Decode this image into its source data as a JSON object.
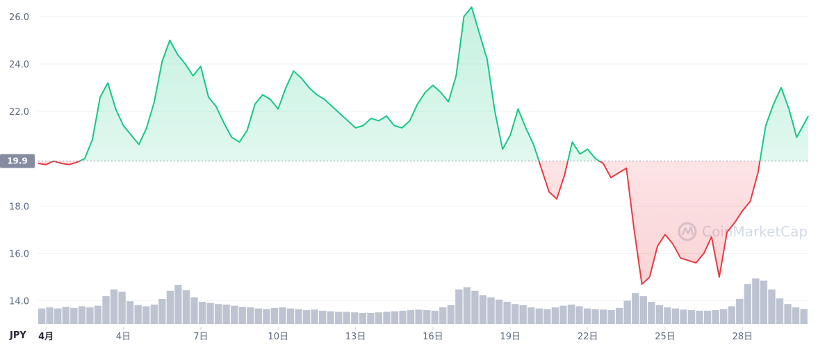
{
  "chart_data": {
    "type": "area",
    "currency_label": "JPY",
    "reference_value": 19.9,
    "reference_label": "19.9",
    "y_ticks": [
      {
        "value": 14,
        "label": "14.0"
      },
      {
        "value": 16,
        "label": "16.0"
      },
      {
        "value": 18,
        "label": "18.0"
      },
      {
        "value": 22,
        "label": "22.0"
      },
      {
        "value": 24,
        "label": "24.0"
      },
      {
        "value": 26,
        "label": "26.0"
      }
    ],
    "ylim": [
      12.9,
      26.7
    ],
    "xlim": [
      0.0,
      29.85
    ],
    "x_ticks": [
      {
        "day": 0.3,
        "label": "4月",
        "bold": true
      },
      {
        "day": 3.3,
        "label": "4日"
      },
      {
        "day": 6.3,
        "label": "7日"
      },
      {
        "day": 9.3,
        "label": "10日"
      },
      {
        "day": 12.3,
        "label": "13日"
      },
      {
        "day": 15.3,
        "label": "16日"
      },
      {
        "day": 18.3,
        "label": "19日"
      },
      {
        "day": 21.3,
        "label": "22日"
      },
      {
        "day": 24.3,
        "label": "25日"
      },
      {
        "day": 27.3,
        "label": "28日"
      }
    ],
    "price_points": [
      [
        0.0,
        19.8
      ],
      [
        0.3,
        19.75
      ],
      [
        0.6,
        19.9
      ],
      [
        0.9,
        19.8
      ],
      [
        1.2,
        19.75
      ],
      [
        1.5,
        19.85
      ],
      [
        1.8,
        20.0
      ],
      [
        2.1,
        20.8
      ],
      [
        2.4,
        22.6
      ],
      [
        2.7,
        23.2
      ],
      [
        3.0,
        22.1
      ],
      [
        3.3,
        21.4
      ],
      [
        3.6,
        21.0
      ],
      [
        3.9,
        20.6
      ],
      [
        4.2,
        21.3
      ],
      [
        4.5,
        22.4
      ],
      [
        4.8,
        24.1
      ],
      [
        5.1,
        25.0
      ],
      [
        5.4,
        24.4
      ],
      [
        5.7,
        24.0
      ],
      [
        6.0,
        23.5
      ],
      [
        6.3,
        23.9
      ],
      [
        6.6,
        22.6
      ],
      [
        6.9,
        22.2
      ],
      [
        7.2,
        21.5
      ],
      [
        7.5,
        20.9
      ],
      [
        7.8,
        20.7
      ],
      [
        8.1,
        21.2
      ],
      [
        8.4,
        22.3
      ],
      [
        8.7,
        22.7
      ],
      [
        9.0,
        22.5
      ],
      [
        9.3,
        22.1
      ],
      [
        9.6,
        23.0
      ],
      [
        9.9,
        23.7
      ],
      [
        10.2,
        23.4
      ],
      [
        10.5,
        23.0
      ],
      [
        10.8,
        22.7
      ],
      [
        11.1,
        22.5
      ],
      [
        11.4,
        22.2
      ],
      [
        11.7,
        21.9
      ],
      [
        12.0,
        21.6
      ],
      [
        12.3,
        21.3
      ],
      [
        12.6,
        21.4
      ],
      [
        12.9,
        21.7
      ],
      [
        13.2,
        21.6
      ],
      [
        13.5,
        21.8
      ],
      [
        13.8,
        21.4
      ],
      [
        14.1,
        21.3
      ],
      [
        14.4,
        21.6
      ],
      [
        14.7,
        22.3
      ],
      [
        15.0,
        22.8
      ],
      [
        15.3,
        23.1
      ],
      [
        15.6,
        22.8
      ],
      [
        15.9,
        22.4
      ],
      [
        16.2,
        23.5
      ],
      [
        16.5,
        26.0
      ],
      [
        16.8,
        26.4
      ],
      [
        17.1,
        25.3
      ],
      [
        17.4,
        24.2
      ],
      [
        17.7,
        22.0
      ],
      [
        18.0,
        20.4
      ],
      [
        18.3,
        21.0
      ],
      [
        18.6,
        22.1
      ],
      [
        18.9,
        21.3
      ],
      [
        19.2,
        20.6
      ],
      [
        19.5,
        19.6
      ],
      [
        19.8,
        18.6
      ],
      [
        20.1,
        18.3
      ],
      [
        20.4,
        19.3
      ],
      [
        20.7,
        20.7
      ],
      [
        21.0,
        20.2
      ],
      [
        21.3,
        20.4
      ],
      [
        21.6,
        20.0
      ],
      [
        21.9,
        19.8
      ],
      [
        22.2,
        19.2
      ],
      [
        22.5,
        19.4
      ],
      [
        22.8,
        19.6
      ],
      [
        23.1,
        17.0
      ],
      [
        23.4,
        14.7
      ],
      [
        23.7,
        15.0
      ],
      [
        24.0,
        16.3
      ],
      [
        24.3,
        16.8
      ],
      [
        24.6,
        16.4
      ],
      [
        24.9,
        15.8
      ],
      [
        25.2,
        15.7
      ],
      [
        25.5,
        15.6
      ],
      [
        25.8,
        16.0
      ],
      [
        26.1,
        16.7
      ],
      [
        26.4,
        15.0
      ],
      [
        26.7,
        16.9
      ],
      [
        27.0,
        17.3
      ],
      [
        27.3,
        17.8
      ],
      [
        27.6,
        18.2
      ],
      [
        27.9,
        19.4
      ],
      [
        28.2,
        21.4
      ],
      [
        28.5,
        22.3
      ],
      [
        28.8,
        23.0
      ],
      [
        29.1,
        22.1
      ],
      [
        29.4,
        20.9
      ],
      [
        29.85,
        21.8
      ]
    ],
    "volume_relative": [
      0.28,
      0.3,
      0.28,
      0.31,
      0.29,
      0.32,
      0.3,
      0.33,
      0.5,
      0.62,
      0.58,
      0.41,
      0.34,
      0.32,
      0.35,
      0.45,
      0.6,
      0.7,
      0.61,
      0.48,
      0.4,
      0.38,
      0.36,
      0.35,
      0.33,
      0.31,
      0.3,
      0.28,
      0.27,
      0.29,
      0.3,
      0.28,
      0.27,
      0.25,
      0.26,
      0.24,
      0.23,
      0.22,
      0.22,
      0.21,
      0.2,
      0.2,
      0.21,
      0.22,
      0.23,
      0.24,
      0.25,
      0.26,
      0.25,
      0.24,
      0.3,
      0.34,
      0.62,
      0.66,
      0.6,
      0.52,
      0.48,
      0.44,
      0.4,
      0.36,
      0.34,
      0.3,
      0.28,
      0.27,
      0.3,
      0.33,
      0.35,
      0.32,
      0.28,
      0.27,
      0.26,
      0.25,
      0.29,
      0.42,
      0.56,
      0.5,
      0.4,
      0.34,
      0.3,
      0.28,
      0.26,
      0.25,
      0.24,
      0.24,
      0.25,
      0.27,
      0.32,
      0.45,
      0.72,
      0.82,
      0.78,
      0.62,
      0.46,
      0.36,
      0.3,
      0.27
    ],
    "colors": {
      "up": "#16c784",
      "down": "#ea3943",
      "volume": "#bdc3d1",
      "grid": "#eff2f5",
      "reference_badge": "#858ca2"
    }
  },
  "watermark": {
    "text": "CoinMarketCap",
    "icon": "coinmarketcap-logo-icon"
  }
}
